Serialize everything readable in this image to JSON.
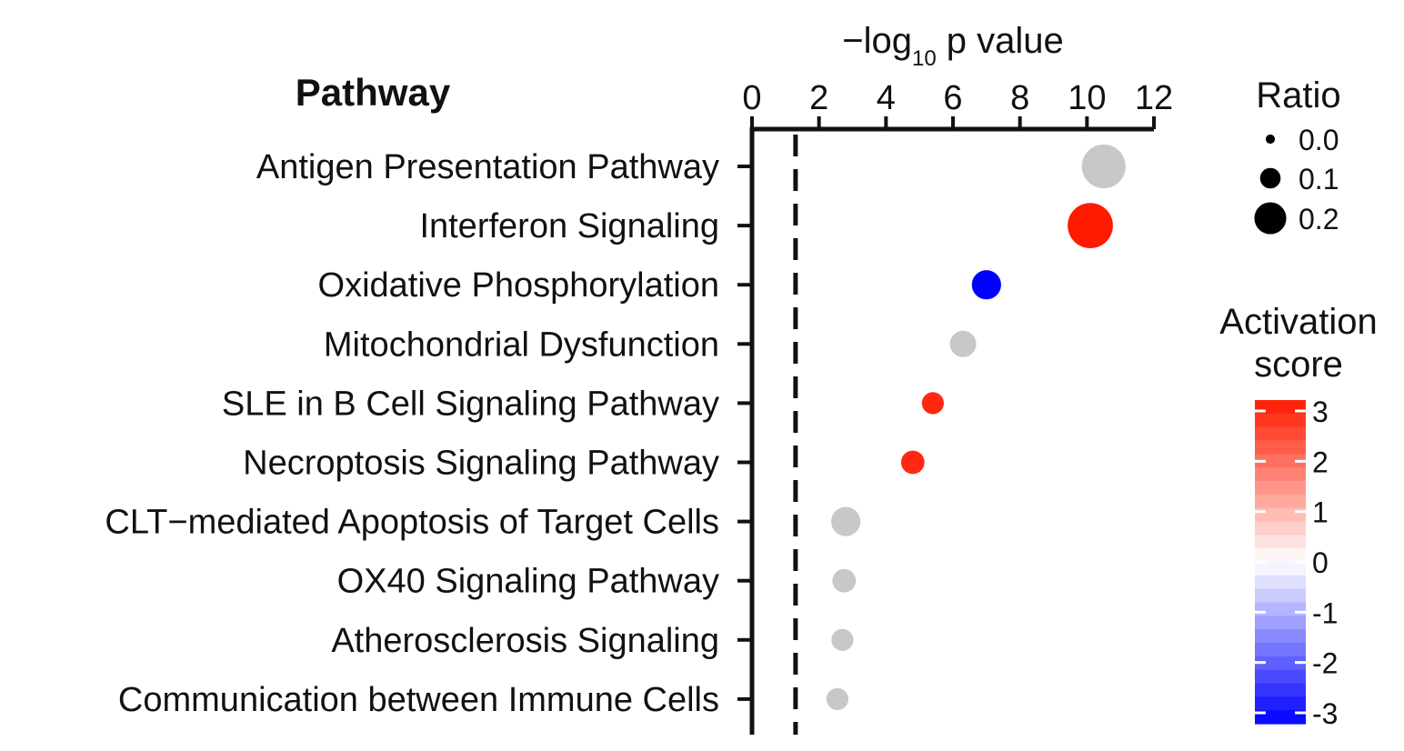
{
  "chart_data": {
    "type": "scatter",
    "xlabel_main": "−log",
    "xlabel_sub": "10",
    "xlabel_tail": " p value",
    "y_header": "Pathway",
    "xlim": [
      0,
      12
    ],
    "x_ticks": [
      0,
      2,
      4,
      6,
      8,
      10,
      12
    ],
    "threshold_x": 1.3,
    "categories": [
      "Antigen Presentation Pathway",
      "Interferon Signaling",
      "Oxidative Phosphorylation",
      "Mitochondrial Dysfunction",
      "SLE in B Cell Signaling Pathway",
      "Necroptosis Signaling Pathway",
      "CLT−mediated Apoptosis of Target Cells",
      "OX40 Signaling Pathway",
      "Atherosclerosis Signaling",
      "Communication between Immune Cells"
    ],
    "points": [
      {
        "x": 10.5,
        "ratio": 0.22,
        "activation": null
      },
      {
        "x": 10.1,
        "ratio": 0.23,
        "activation": 3.0
      },
      {
        "x": 7.0,
        "ratio": 0.12,
        "activation": -3.0
      },
      {
        "x": 6.3,
        "ratio": 0.1,
        "activation": null
      },
      {
        "x": 5.4,
        "ratio": 0.07,
        "activation": 2.8
      },
      {
        "x": 4.8,
        "ratio": 0.08,
        "activation": 2.8
      },
      {
        "x": 2.8,
        "ratio": 0.12,
        "activation": null
      },
      {
        "x": 2.75,
        "ratio": 0.08,
        "activation": null
      },
      {
        "x": 2.7,
        "ratio": 0.07,
        "activation": null
      },
      {
        "x": 2.55,
        "ratio": 0.07,
        "activation": null
      }
    ],
    "size_legend": {
      "title": "Ratio",
      "values": [
        0.0,
        0.1,
        0.2
      ],
      "labels": [
        "0.0",
        "0.1",
        "0.2"
      ]
    },
    "color_legend": {
      "title_line1": "Activation",
      "title_line2": "score",
      "min": -3,
      "max": 3,
      "ticks": [
        3,
        2,
        1,
        0,
        -1,
        -2,
        -3
      ],
      "tick_labels": [
        "3",
        "2",
        "1",
        "0",
        "-1",
        "-2",
        "-3"
      ]
    },
    "colors": {
      "positive": "#ff1a00",
      "negative": "#0000ff",
      "neutral": "#ffffff",
      "no_score": "#c8c8c8",
      "axis": "#111111"
    }
  }
}
